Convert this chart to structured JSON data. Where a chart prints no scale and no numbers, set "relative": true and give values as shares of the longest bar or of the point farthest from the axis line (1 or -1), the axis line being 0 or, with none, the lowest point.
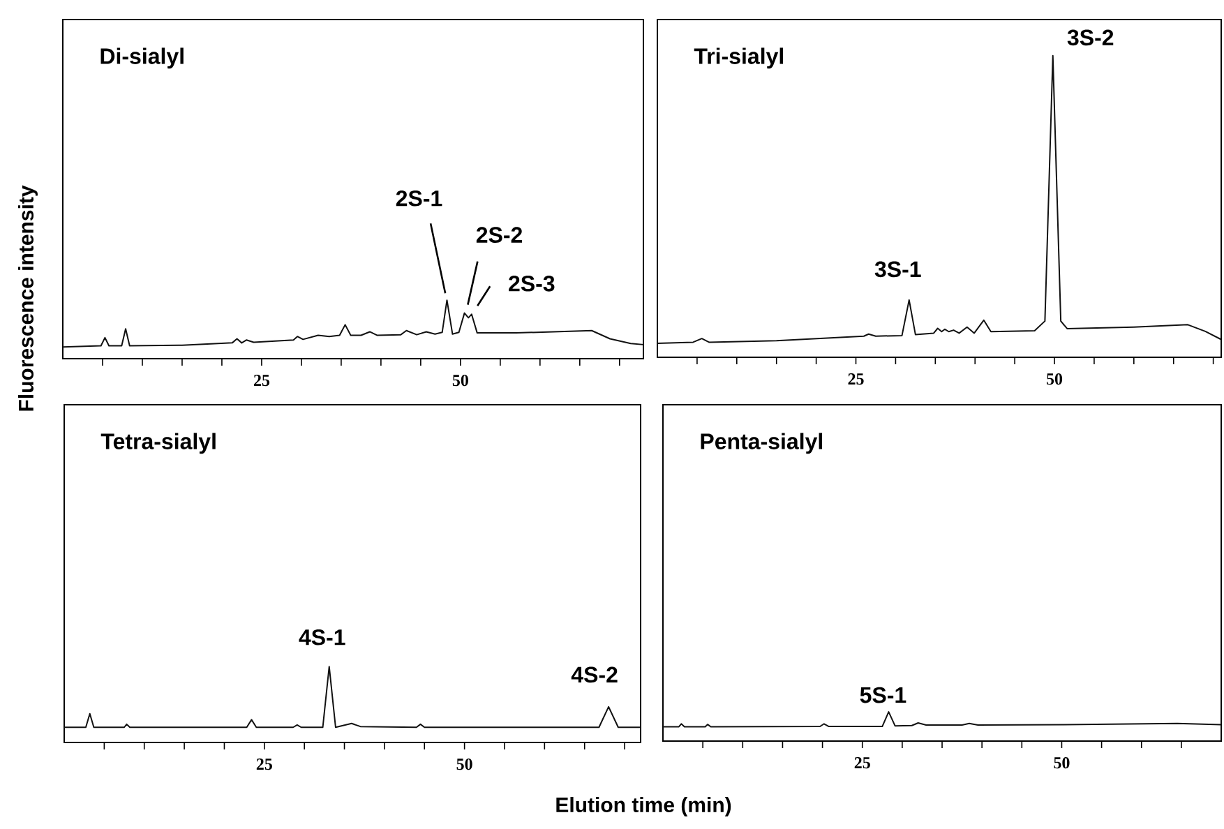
{
  "chart_data": [
    {
      "type": "line",
      "title": "Di-sialyl",
      "ylabel": "Fluorescence intensity",
      "relative": true,
      "xlim": [
        0,
        73
      ],
      "xticks": [
        {
          "value": 5,
          "label": null
        },
        {
          "value": 10,
          "label": null
        },
        {
          "value": 15,
          "label": null
        },
        {
          "value": 20,
          "label": null
        },
        25,
        {
          "value": 30,
          "label": null
        },
        {
          "value": 35,
          "label": null
        },
        {
          "value": 40,
          "label": null
        },
        {
          "value": 45,
          "label": null
        },
        50,
        {
          "value": 55,
          "label": null
        },
        {
          "value": 60,
          "label": null
        },
        {
          "value": 65,
          "label": null
        },
        {
          "value": 70,
          "label": null
        }
      ],
      "tick_labels": "x",
      "marker": "none",
      "x": [
        0,
        4.8,
        5.3,
        5.8,
        7.4,
        7.9,
        8.4,
        15,
        21.3,
        21.9,
        22.5,
        23.1,
        24,
        29,
        29.5,
        30.2,
        32.1,
        33.5,
        34.8,
        35.5,
        36.2,
        37.5,
        38.6,
        39.5,
        42.5,
        43.2,
        44.5,
        45.7,
        46.8,
        47.7,
        48.3,
        49,
        49.8,
        50.5,
        51,
        51.4,
        52.1,
        57,
        66.5,
        68.8,
        71.4,
        73
      ],
      "series": [
        {
          "color": "#111111",
          "values": [
            0.2,
            0.22,
            0.36,
            0.22,
            0.22,
            0.51,
            0.22,
            0.23,
            0.27,
            0.34,
            0.27,
            0.32,
            0.28,
            0.32,
            0.38,
            0.33,
            0.4,
            0.38,
            0.4,
            0.58,
            0.4,
            0.4,
            0.46,
            0.4,
            0.41,
            0.48,
            0.41,
            0.46,
            0.42,
            0.45,
            1.0,
            0.42,
            0.45,
            0.78,
            0.7,
            0.76,
            0.44,
            0.44,
            0.48,
            0.34,
            0.26,
            0.24
          ]
        }
      ],
      "annotations": [
        {
          "text": "2S-1",
          "x": 48.3,
          "y": 1.0
        },
        {
          "text": "2S-2",
          "x": 50.5,
          "y": 0.78
        },
        {
          "text": "2S-3",
          "x": 51.4,
          "y": 0.76
        }
      ]
    },
    {
      "type": "line",
      "title": "Tri-sialyl",
      "relative": true,
      "xlim": [
        0,
        71
      ],
      "xticks": [
        {
          "value": 5,
          "label": null
        },
        {
          "value": 10,
          "label": null
        },
        {
          "value": 15,
          "label": null
        },
        {
          "value": 20,
          "label": null
        },
        25,
        {
          "value": 30,
          "label": null
        },
        {
          "value": 35,
          "label": null
        },
        {
          "value": 40,
          "label": null
        },
        {
          "value": 45,
          "label": null
        },
        50,
        {
          "value": 55,
          "label": null
        },
        {
          "value": 60,
          "label": null
        },
        {
          "value": 65,
          "label": null
        },
        {
          "value": 70,
          "label": null
        }
      ],
      "tick_labels": "x",
      "marker": "none",
      "x": [
        0,
        4.5,
        5.6,
        6.5,
        15,
        26,
        26.6,
        27.5,
        30.8,
        31.7,
        32.5,
        34.8,
        35.3,
        35.8,
        36.2,
        36.7,
        37.3,
        38,
        39,
        39.9,
        41.1,
        42,
        47.5,
        48.8,
        49.8,
        50.8,
        51.6,
        60,
        66.8,
        69,
        71
      ],
      "series": [
        {
          "color": "#111111",
          "values": [
            0.046,
            0.05,
            0.062,
            0.05,
            0.055,
            0.07,
            0.077,
            0.07,
            0.072,
            0.19,
            0.075,
            0.08,
            0.096,
            0.085,
            0.093,
            0.085,
            0.09,
            0.08,
            0.1,
            0.08,
            0.123,
            0.085,
            0.088,
            0.12,
            1.0,
            0.12,
            0.095,
            0.1,
            0.108,
            0.086,
            0.059
          ]
        }
      ],
      "annotations": [
        {
          "text": "3S-1",
          "x": 31.7,
          "y": 0.19
        },
        {
          "text": "3S-2",
          "x": 49.8,
          "y": 1.0
        }
      ]
    },
    {
      "type": "line",
      "title": "Tetra-sialyl",
      "xlabel": "Elution time (min)",
      "relative": true,
      "xlim": [
        0,
        72
      ],
      "xticks": [
        {
          "value": 5,
          "label": null
        },
        {
          "value": 10,
          "label": null
        },
        {
          "value": 15,
          "label": null
        },
        {
          "value": 20,
          "label": null
        },
        25,
        {
          "value": 30,
          "label": null
        },
        {
          "value": 35,
          "label": null
        },
        {
          "value": 40,
          "label": null
        },
        {
          "value": 45,
          "label": null
        },
        50,
        {
          "value": 55,
          "label": null
        },
        {
          "value": 60,
          "label": null
        },
        {
          "value": 65,
          "label": null
        },
        {
          "value": 70,
          "label": null
        }
      ],
      "tick_labels": "x",
      "marker": "none",
      "x": [
        0,
        2.7,
        3.2,
        3.7,
        7.5,
        7.8,
        8.2,
        20,
        22.8,
        23.4,
        24,
        28.6,
        29.1,
        29.6,
        32.3,
        33.1,
        33.9,
        35.9,
        37,
        44,
        44.5,
        45,
        66.8,
        68,
        69.2,
        72
      ],
      "series": [
        {
          "color": "#111111",
          "values": [
            0.2,
            0.2,
            0.38,
            0.2,
            0.2,
            0.24,
            0.2,
            0.2,
            0.2,
            0.3,
            0.2,
            0.2,
            0.23,
            0.2,
            0.2,
            1.0,
            0.2,
            0.25,
            0.21,
            0.2,
            0.24,
            0.2,
            0.2,
            0.47,
            0.2,
            0.2
          ]
        }
      ],
      "annotations": [
        {
          "text": "4S-1",
          "x": 33.1,
          "y": 1.0
        },
        {
          "text": "4S-2",
          "x": 68,
          "y": 0.47
        }
      ]
    },
    {
      "type": "line",
      "title": "Penta-sialyl",
      "relative": true,
      "xlim": [
        0,
        70
      ],
      "xticks": [
        {
          "value": 5,
          "label": null
        },
        {
          "value": 10,
          "label": null
        },
        {
          "value": 15,
          "label": null
        },
        {
          "value": 20,
          "label": null
        },
        25,
        {
          "value": 30,
          "label": null
        },
        {
          "value": 35,
          "label": null
        },
        {
          "value": 40,
          "label": null
        },
        {
          "value": 45,
          "label": null
        },
        50,
        {
          "value": 55,
          "label": null
        },
        {
          "value": 60,
          "label": null
        },
        {
          "value": 65,
          "label": null
        }
      ],
      "tick_labels": "x",
      "marker": "none",
      "x": [
        0,
        2,
        2.3,
        2.7,
        5.3,
        5.6,
        6,
        19.7,
        20.2,
        20.8,
        27.5,
        28.3,
        29.1,
        31.2,
        32,
        33,
        37.5,
        38.4,
        39.5,
        50,
        64.5,
        70
      ],
      "series": [
        {
          "color": "#111111",
          "values": [
            0.49,
            0.49,
            0.59,
            0.49,
            0.49,
            0.57,
            0.49,
            0.5,
            0.59,
            0.5,
            0.5,
            1.0,
            0.52,
            0.53,
            0.62,
            0.55,
            0.55,
            0.6,
            0.55,
            0.56,
            0.6,
            0.56
          ]
        }
      ],
      "annotations": [
        {
          "text": "5S-1",
          "x": 28.3,
          "y": 1.0
        }
      ]
    }
  ]
}
